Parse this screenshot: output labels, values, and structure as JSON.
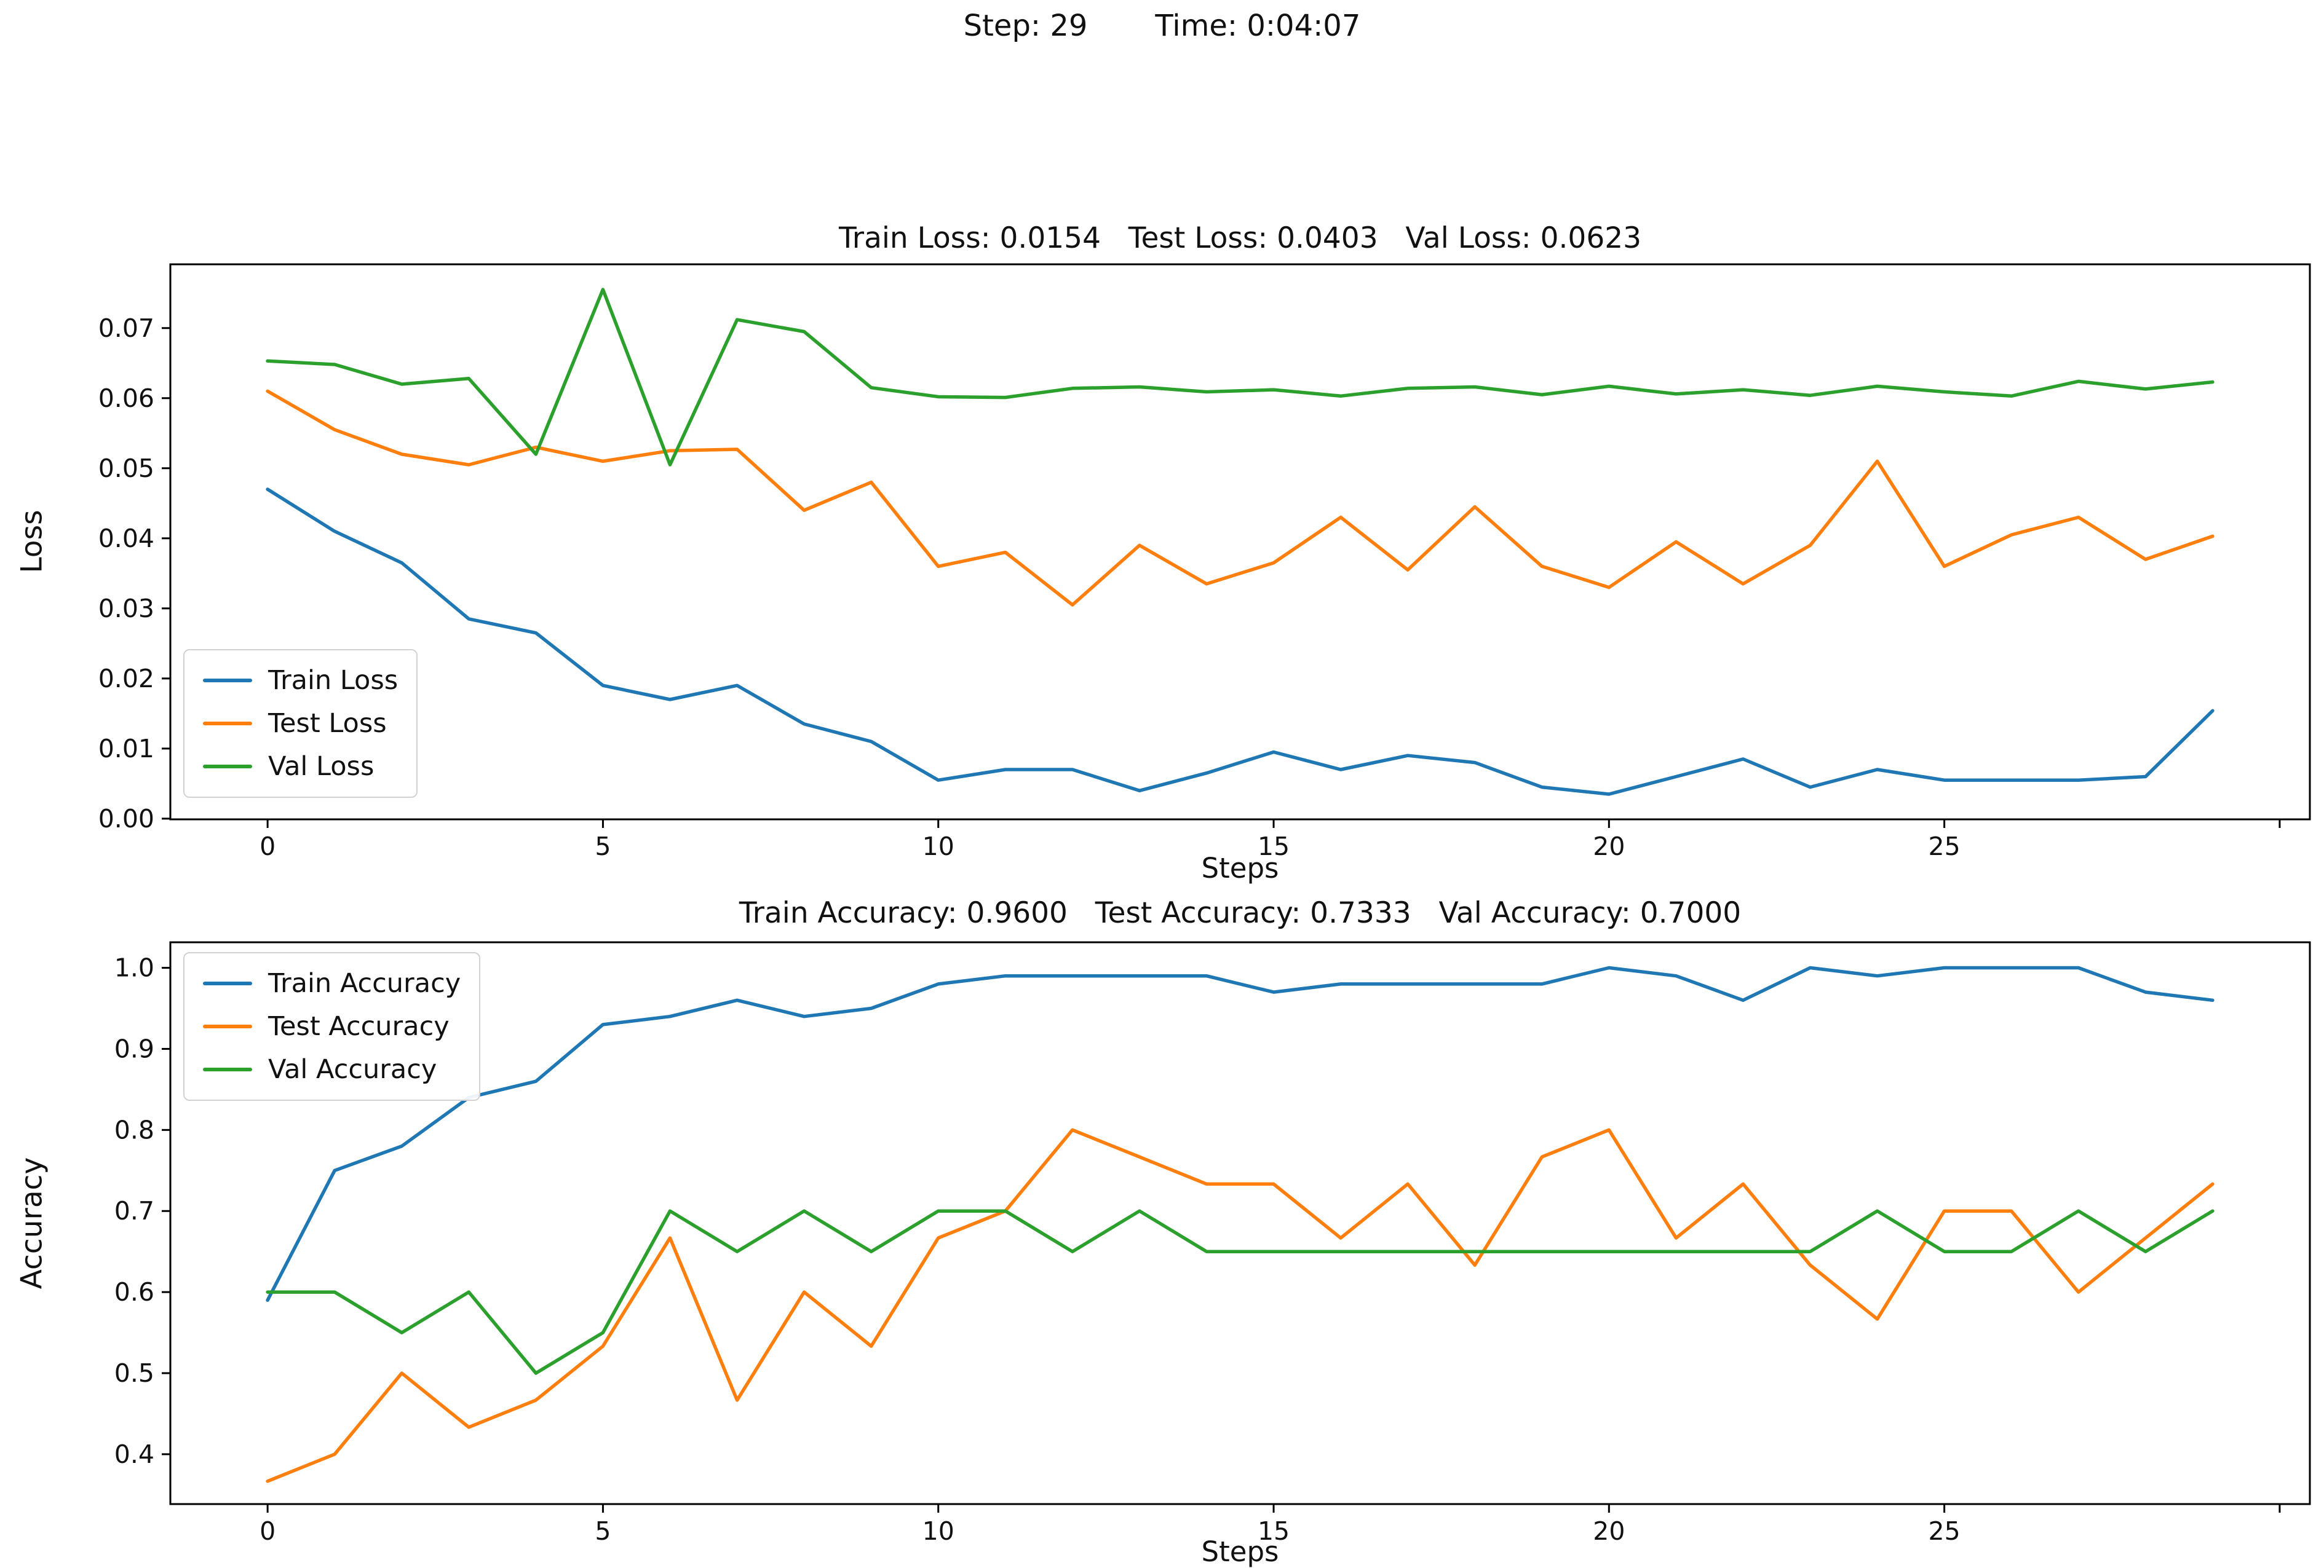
{
  "header": {
    "step_label": "Step: 29",
    "time_label": "Time: 0:04:07"
  },
  "colors": {
    "train": "#1f77b4",
    "test": "#ff7f0e",
    "val": "#2ca02c",
    "spine": "#000000"
  },
  "chart_data": [
    {
      "type": "line",
      "title": "Train Loss: 0.0154   Test Loss: 0.0403   Val Loss: 0.0623",
      "xlabel": "Steps",
      "ylabel": "Loss",
      "x": [
        0,
        1,
        2,
        3,
        4,
        5,
        6,
        7,
        8,
        9,
        10,
        11,
        12,
        13,
        14,
        15,
        16,
        17,
        18,
        19,
        20,
        21,
        22,
        23,
        24,
        25,
        26,
        27,
        28,
        29
      ],
      "series": [
        {
          "name": "Train Loss",
          "color": "#1f77b4",
          "values": [
            0.047,
            0.041,
            0.0365,
            0.0285,
            0.0265,
            0.019,
            0.017,
            0.019,
            0.0135,
            0.011,
            0.0055,
            0.007,
            0.007,
            0.004,
            0.0065,
            0.0095,
            0.007,
            0.009,
            0.008,
            0.0045,
            0.0035,
            0.006,
            0.0085,
            0.0045,
            0.007,
            0.0055,
            0.0055,
            0.0055,
            0.006,
            0.0154
          ]
        },
        {
          "name": "Test Loss",
          "color": "#ff7f0e",
          "values": [
            0.061,
            0.0555,
            0.052,
            0.0505,
            0.053,
            0.051,
            0.0525,
            0.0527,
            0.044,
            0.048,
            0.036,
            0.038,
            0.0305,
            0.039,
            0.0335,
            0.0365,
            0.043,
            0.0355,
            0.0445,
            0.036,
            0.033,
            0.0395,
            0.0335,
            0.039,
            0.051,
            0.036,
            0.0405,
            0.043,
            0.037,
            0.0403
          ]
        },
        {
          "name": "Val Loss",
          "color": "#2ca02c",
          "values": [
            0.0653,
            0.0648,
            0.062,
            0.0628,
            0.052,
            0.0755,
            0.0505,
            0.0712,
            0.0695,
            0.0615,
            0.0602,
            0.0601,
            0.0614,
            0.0616,
            0.0609,
            0.0612,
            0.0603,
            0.0614,
            0.0616,
            0.0605,
            0.0617,
            0.0606,
            0.0612,
            0.0604,
            0.0617,
            0.0609,
            0.0603,
            0.0624,
            0.0613,
            0.0623
          ]
        }
      ],
      "xlim": [
        -1.45,
        30.45
      ],
      "ylim": [
        -0.0001,
        0.0791
      ],
      "xticks": [
        0,
        5,
        10,
        15,
        20,
        25
      ],
      "xticks_unlabeled": [
        30
      ],
      "yticks": [
        0,
        0.01,
        0.02,
        0.03,
        0.04,
        0.05,
        0.06,
        0.07
      ],
      "ytick_labels": [
        "0.00",
        "0.01",
        "0.02",
        "0.03",
        "0.04",
        "0.05",
        "0.06",
        "0.07"
      ],
      "legend": {
        "position": "lower-left",
        "entries": [
          "Train Loss",
          "Test Loss",
          "Val Loss"
        ]
      },
      "grid": false
    },
    {
      "type": "line",
      "title": "Train Accuracy: 0.9600   Test Accuracy: 0.7333   Val Accuracy: 0.7000",
      "xlabel": "Steps",
      "ylabel": "Accuracy",
      "x": [
        0,
        1,
        2,
        3,
        4,
        5,
        6,
        7,
        8,
        9,
        10,
        11,
        12,
        13,
        14,
        15,
        16,
        17,
        18,
        19,
        20,
        21,
        22,
        23,
        24,
        25,
        26,
        27,
        28,
        29
      ],
      "series": [
        {
          "name": "Train Accuracy",
          "color": "#1f77b4",
          "values": [
            0.59,
            0.75,
            0.78,
            0.84,
            0.86,
            0.93,
            0.94,
            0.96,
            0.94,
            0.95,
            0.98,
            0.99,
            0.99,
            0.99,
            0.99,
            0.97,
            0.98,
            0.98,
            0.98,
            0.98,
            1.0,
            0.99,
            0.96,
            1.0,
            0.99,
            1.0,
            1.0,
            1.0,
            0.97,
            0.96
          ]
        },
        {
          "name": "Test Accuracy",
          "color": "#ff7f0e",
          "values": [
            0.3667,
            0.4,
            0.5,
            0.4333,
            0.4667,
            0.5333,
            0.6667,
            0.4667,
            0.6,
            0.5333,
            0.6667,
            0.7,
            0.8,
            0.7667,
            0.7333,
            0.7333,
            0.6667,
            0.7333,
            0.6333,
            0.7667,
            0.8,
            0.6667,
            0.7333,
            0.6333,
            0.5667,
            0.7,
            0.7,
            0.6,
            0.6667,
            0.7333
          ]
        },
        {
          "name": "Val Accuracy",
          "color": "#2ca02c",
          "values": [
            0.6,
            0.6,
            0.55,
            0.6,
            0.5,
            0.55,
            0.7,
            0.65,
            0.7,
            0.65,
            0.7,
            0.7,
            0.65,
            0.7,
            0.65,
            0.65,
            0.65,
            0.65,
            0.65,
            0.65,
            0.65,
            0.65,
            0.65,
            0.65,
            0.7,
            0.65,
            0.65,
            0.7,
            0.65,
            0.7
          ]
        }
      ],
      "xlim": [
        -1.45,
        30.45
      ],
      "ylim": [
        0.3385,
        1.0315
      ],
      "xticks": [
        0,
        5,
        10,
        15,
        20,
        25
      ],
      "xticks_unlabeled": [
        30
      ],
      "yticks": [
        0.4,
        0.5,
        0.6,
        0.7,
        0.8,
        0.9,
        1.0
      ],
      "ytick_labels": [
        "0.4",
        "0.5",
        "0.6",
        "0.7",
        "0.8",
        "0.9",
        "1.0"
      ],
      "legend": {
        "position": "upper-left",
        "entries": [
          "Train Accuracy",
          "Test Accuracy",
          "Val Accuracy"
        ]
      },
      "grid": false
    }
  ]
}
